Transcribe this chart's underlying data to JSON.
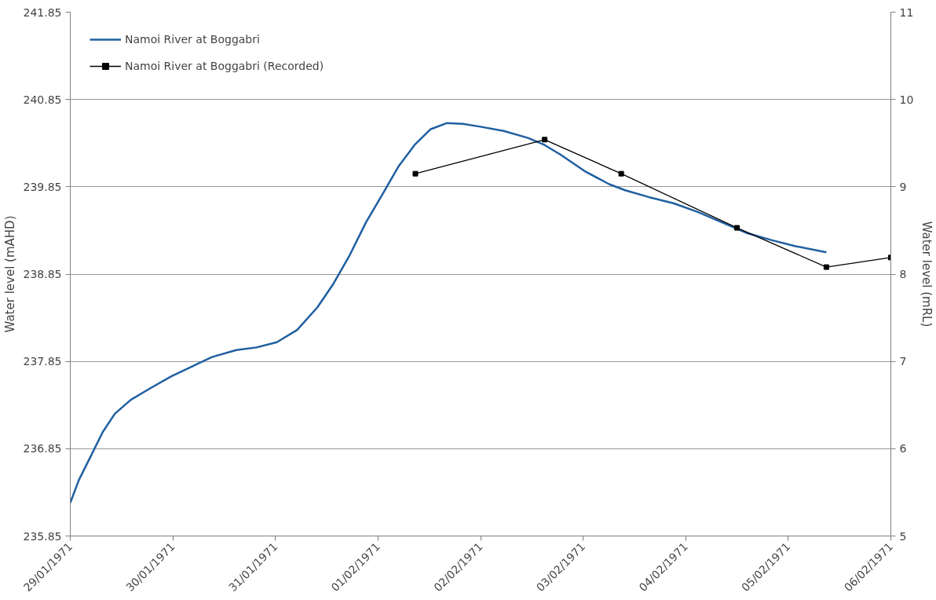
{
  "chart_data": {
    "type": "line",
    "xlabel": null,
    "ylabel": "Water level (mAHD)",
    "y2label": "Water level (mRL)",
    "xlim": [
      "1971-01-29",
      "1971-02-06"
    ],
    "xticks": [
      {
        "value": "1971-01-29",
        "label": "29/01/1971"
      },
      {
        "value": "1971-01-30",
        "label": "30/01/1971"
      },
      {
        "value": "1971-01-31",
        "label": "31/01/1971"
      },
      {
        "value": "1971-02-01",
        "label": "01/02/1971"
      },
      {
        "value": "1971-02-02",
        "label": "02/02/1971"
      },
      {
        "value": "1971-02-03",
        "label": "03/02/1971"
      },
      {
        "value": "1971-02-04",
        "label": "04/02/1971"
      },
      {
        "value": "1971-02-05",
        "label": "05/02/1971"
      },
      {
        "value": "1971-02-06",
        "label": "06/02/1971"
      }
    ],
    "ylim": [
      235.85,
      241.85
    ],
    "yticks": [
      235.85,
      236.85,
      237.85,
      238.85,
      239.85,
      240.85,
      241.85
    ],
    "y2lim": [
      5,
      11
    ],
    "y2ticks": [
      5,
      6,
      7,
      8,
      9,
      10,
      11
    ],
    "grid": "y",
    "legend": "top left",
    "series": [
      {
        "name": "Namoi River at Boggabri",
        "color": "#1f5fa0",
        "marker": "none",
        "x": [
          "1971-01-29T00:00",
          "1971-01-29T02:00",
          "1971-01-29T04:45",
          "1971-01-29T07:35",
          "1971-01-29T10:25",
          "1971-01-29T14:10",
          "1971-01-29T19:00",
          "1971-01-29T23:40",
          "1971-01-30T04:25",
          "1971-01-30T09:10",
          "1971-01-30T14:50",
          "1971-01-30T19:35",
          "1971-01-31T00:20",
          "1971-01-31T05:05",
          "1971-01-31T09:50",
          "1971-01-31T13:35",
          "1971-01-31T17:25",
          "1971-01-31T21:10",
          "1971-02-01T01:00",
          "1971-02-01T04:45",
          "1971-02-01T08:35",
          "1971-02-01T12:20",
          "1971-02-01T16:10",
          "1971-02-01T19:55",
          "1971-02-01T23:45",
          "1971-02-02T05:25",
          "1971-02-02T11:05",
          "1971-02-02T14:55",
          "1971-02-02T18:40",
          "1971-02-03T00:20",
          "1971-02-03T06:05",
          "1971-02-03T09:50",
          "1971-02-03T15:30",
          "1971-02-03T21:15",
          "1971-02-04T02:55",
          "1971-02-04T08:35",
          "1971-02-04T14:20",
          "1971-02-04T20:00",
          "1971-02-05T01:40",
          "1971-02-05T08:55"
        ],
        "values": [
          236.23,
          236.49,
          236.76,
          237.04,
          237.25,
          237.41,
          237.55,
          237.68,
          237.79,
          237.9,
          237.98,
          238.01,
          238.07,
          238.21,
          238.47,
          238.74,
          239.07,
          239.44,
          239.76,
          240.08,
          240.33,
          240.51,
          240.58,
          240.57,
          240.54,
          240.49,
          240.41,
          240.33,
          240.22,
          240.03,
          239.88,
          239.81,
          239.73,
          239.66,
          239.56,
          239.44,
          239.32,
          239.24,
          239.17,
          239.1
        ]
      },
      {
        "name": "Namoi River at Boggabri (Recorded)",
        "color": "#000000",
        "marker": "square",
        "axis": "y2",
        "x": [
          "1971-02-01T08:45",
          "1971-02-02T15:00",
          "1971-02-03T08:55",
          "1971-02-04T12:00",
          "1971-02-05T08:55",
          "1971-02-06T00:00"
        ],
        "values": [
          9.15,
          9.54,
          9.15,
          8.53,
          8.08,
          8.19
        ]
      }
    ]
  }
}
